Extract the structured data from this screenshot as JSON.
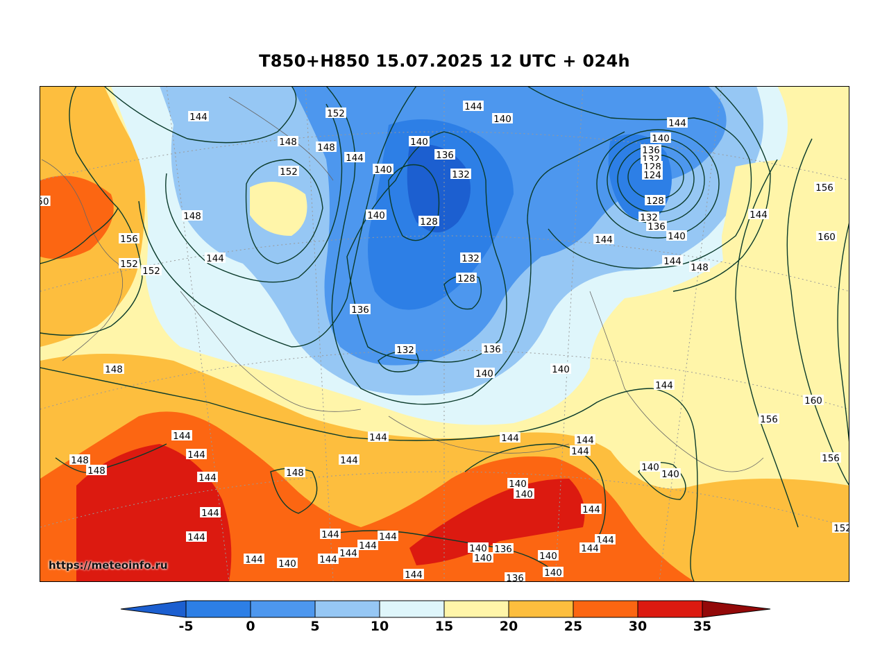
{
  "title": "T850+H850 15.07.2025 12 UTC + 024h",
  "watermark": "https://meteoinfo.ru",
  "colorbar": {
    "ticks": [
      "-5",
      "0",
      "5",
      "10",
      "15",
      "20",
      "25",
      "30",
      "35"
    ],
    "colors": {
      "below_-5": "#1c5fd0",
      "-5_0": "#2d7fe6",
      "0_5": "#4d97ee",
      "5_10": "#96c7f4",
      "10_15": "#dff6fb",
      "15_20": "#fff5a9",
      "20_25": "#fdbe3e",
      "25_30": "#fc6612",
      "30_35": "#dc1a10",
      "above_35": "#930909"
    }
  },
  "contour_labels": [
    {
      "t": "144"
    },
    {
      "t": "152"
    },
    {
      "t": "148"
    },
    {
      "t": "148"
    },
    {
      "t": "152"
    },
    {
      "t": "144"
    },
    {
      "t": "140"
    },
    {
      "t": "140"
    },
    {
      "t": "144"
    },
    {
      "t": "140"
    },
    {
      "t": "136"
    },
    {
      "t": "132"
    },
    {
      "t": "144"
    },
    {
      "t": "140"
    },
    {
      "t": "136"
    },
    {
      "t": "132"
    },
    {
      "t": "128"
    },
    {
      "t": "124"
    },
    {
      "t": "128"
    },
    {
      "t": "132"
    },
    {
      "t": "136"
    },
    {
      "t": "140"
    },
    {
      "t": "156"
    },
    {
      "t": "144"
    },
    {
      "t": "160"
    },
    {
      "t": "144"
    },
    {
      "t": "148"
    },
    {
      "t": "144"
    },
    {
      "t": "148"
    },
    {
      "t": "156"
    },
    {
      "t": "152"
    },
    {
      "t": "152"
    },
    {
      "t": "144"
    },
    {
      "t": "140"
    },
    {
      "t": "128"
    },
    {
      "t": "132"
    },
    {
      "t": "128"
    },
    {
      "t": "136"
    },
    {
      "t": "132"
    },
    {
      "t": "136"
    },
    {
      "t": "140"
    },
    {
      "t": "140"
    },
    {
      "t": "148"
    },
    {
      "t": "144"
    },
    {
      "t": "160"
    },
    {
      "t": "156"
    },
    {
      "t": "156"
    },
    {
      "t": "144"
    },
    {
      "t": "144"
    },
    {
      "t": "144"
    },
    {
      "t": "148"
    },
    {
      "t": "148"
    },
    {
      "t": "144"
    },
    {
      "t": "144"
    },
    {
      "t": "144"
    },
    {
      "t": "144"
    },
    {
      "t": "144"
    },
    {
      "t": "148"
    },
    {
      "t": "144"
    },
    {
      "t": "144"
    },
    {
      "t": "140"
    },
    {
      "t": "140"
    },
    {
      "t": "140"
    },
    {
      "t": "140"
    },
    {
      "t": "144"
    },
    {
      "t": "144"
    },
    {
      "t": "144"
    },
    {
      "t": "144"
    },
    {
      "t": "144"
    },
    {
      "t": "144"
    },
    {
      "t": "144"
    },
    {
      "t": "144"
    },
    {
      "t": "140"
    },
    {
      "t": "144"
    },
    {
      "t": "140"
    },
    {
      "t": "140"
    },
    {
      "t": "136"
    },
    {
      "t": "140"
    },
    {
      "t": "140"
    },
    {
      "t": "136"
    },
    {
      "t": "144"
    },
    {
      "t": "144"
    },
    {
      "t": "152"
    },
    {
      "t": "50"
    }
  ]
}
